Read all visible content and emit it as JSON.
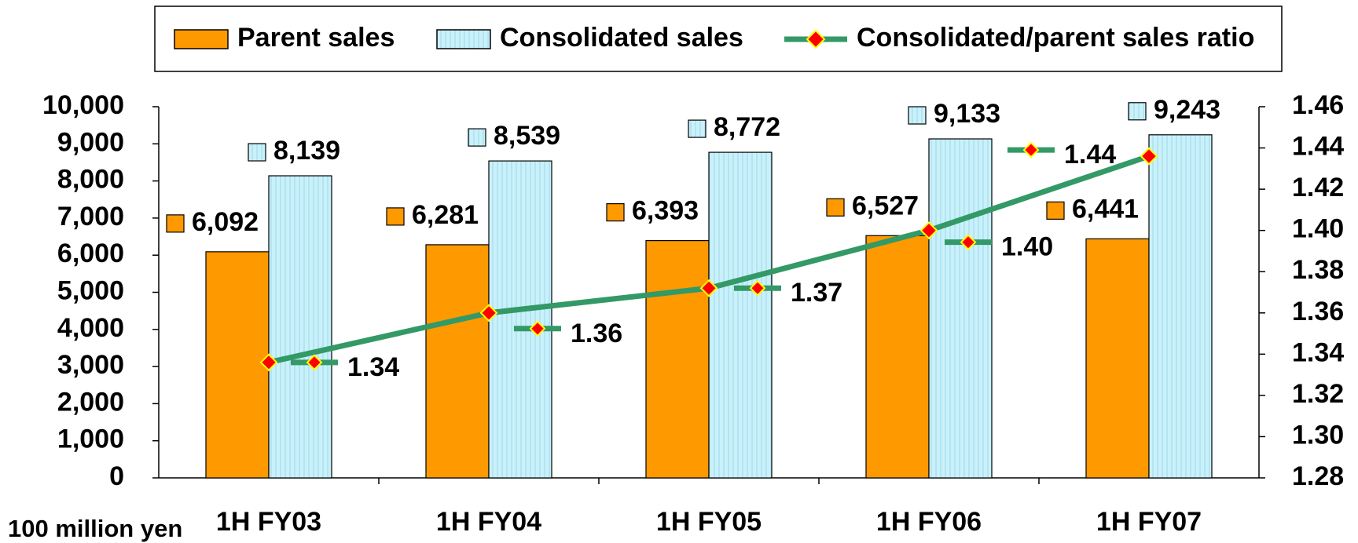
{
  "chart_data": {
    "type": "bar",
    "y_axis_label": "100 million yen",
    "categories": [
      "1H FY03",
      "1H FY04",
      "1H FY05",
      "1H FY06",
      "1H FY07"
    ],
    "series": [
      {
        "name": "Parent sales",
        "color": "#ff9900",
        "values": [
          6092,
          6281,
          6393,
          6527,
          6441
        ],
        "value_labels": [
          "6,092",
          "6,281",
          "6,393",
          "6,527",
          "6,441"
        ]
      },
      {
        "name": "Consolidated sales",
        "color": "#c9f1fb",
        "values": [
          8139,
          8539,
          8772,
          9133,
          9243
        ],
        "value_labels": [
          "8,139",
          "8,539",
          "8,772",
          "9,133",
          "9,243"
        ]
      },
      {
        "name": "Consolidated/parent sales ratio",
        "type": "line",
        "axis": "y2",
        "color": "#339966",
        "values": [
          1.336,
          1.36,
          1.372,
          1.4,
          1.436
        ],
        "value_labels": [
          "1.34",
          "1.36",
          "1.37",
          "1.40",
          "1.44"
        ]
      }
    ],
    "ylim": [
      0,
      10000
    ],
    "yticks": [
      0,
      {
        "value": 1000,
        "label": "1,000"
      },
      {
        "value": 2000,
        "label": "2,000"
      },
      {
        "value": 3000,
        "label": "3,000"
      },
      {
        "value": 4000,
        "label": "4,000"
      },
      {
        "value": 5000,
        "label": "5,000"
      },
      {
        "value": 6000,
        "label": "6,000"
      },
      {
        "value": 7000,
        "label": "7,000"
      },
      {
        "value": 8000,
        "label": "8,000"
      },
      {
        "value": 9000,
        "label": "9,000"
      },
      {
        "value": 10000,
        "label": "10,000"
      }
    ],
    "y2lim": [
      1.28,
      1.46
    ],
    "y2ticks": [
      1.28,
      {
        "value": 1.3,
        "label": "1.30"
      },
      1.32,
      1.34,
      1.36,
      1.38,
      {
        "value": 1.4,
        "label": "1.40"
      },
      1.42,
      1.44,
      1.46
    ],
    "legend": "top"
  }
}
